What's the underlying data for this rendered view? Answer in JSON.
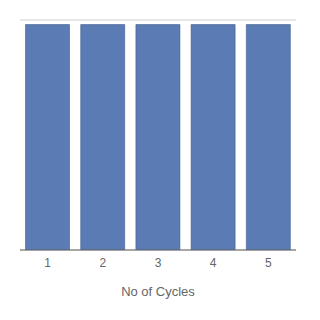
{
  "chart_data": {
    "type": "bar",
    "categories": [
      "1",
      "2",
      "3",
      "4",
      "5"
    ],
    "values": [
      98,
      98,
      98,
      98,
      98
    ],
    "color": "#5B7BB5",
    "xlabel": "No of Cycles",
    "ylim": [
      0,
      100
    ],
    "yticks": [
      0,
      20,
      40,
      60,
      80,
      100
    ],
    "grid": true,
    "tick_labels": "x"
  }
}
